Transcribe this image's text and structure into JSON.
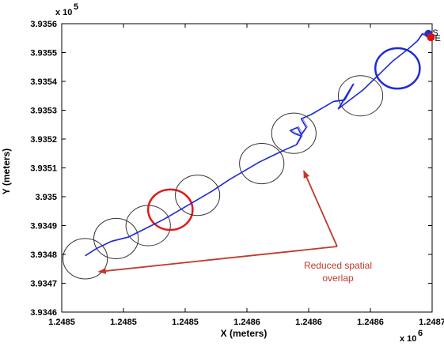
{
  "chart_data": {
    "type": "line",
    "xlabel": "X (meters)",
    "ylabel": "Y (meters)",
    "x_exponent_label": "x 10",
    "x_exponent_power": "6",
    "y_exponent_label": "x 10",
    "y_exponent_power": "5",
    "x_tick_labels": [
      "1.2485",
      "1.2485",
      "1.2485",
      "1.2486",
      "1.2486",
      "1.2486",
      "1.2487"
    ],
    "x_tick_values": [
      1248500,
      1248525,
      1248550,
      1248575,
      1248600,
      1248625,
      1248650
    ],
    "y_tick_labels": [
      "3.9356",
      "3.9355",
      "3.9354",
      "3.9353",
      "3.9352",
      "3.9351",
      "3.935",
      "3.9349",
      "3.9348",
      "3.9347",
      "3.9346"
    ],
    "y_tick_values": [
      393560,
      393550,
      393540,
      393530,
      393520,
      393510,
      393500,
      393490,
      393480,
      393470,
      393460
    ],
    "xlim": [
      1248500,
      1248650
    ],
    "ylim": [
      393460,
      393560
    ],
    "grid": false,
    "legend": "none",
    "trajectory_color": "#1f2bd6",
    "series": [
      {
        "values": [
          [
            1248509.5,
            393479.5
          ],
          [
            1248514,
            393482
          ],
          [
            1248520,
            393484.5
          ],
          [
            1248527,
            393486
          ],
          [
            1248534,
            393489
          ],
          [
            1248541,
            393492
          ],
          [
            1248548,
            393495.5
          ],
          [
            1248555,
            393499
          ],
          [
            1248561,
            393502
          ],
          [
            1248568,
            393506
          ],
          [
            1248574,
            393509
          ],
          [
            1248580,
            393512
          ],
          [
            1248586,
            393514.5
          ],
          [
            1248591,
            393516.5
          ],
          [
            1248595,
            393518
          ],
          [
            1248597,
            393521
          ],
          [
            1248594,
            393522
          ],
          [
            1248592.5,
            393523
          ],
          [
            1248595.5,
            393524
          ],
          [
            1248597,
            393521.5
          ],
          [
            1248599,
            393524
          ],
          [
            1248597,
            393527
          ],
          [
            1248601,
            393528.5
          ],
          [
            1248606,
            393531
          ],
          [
            1248610,
            393533
          ],
          [
            1248614.5,
            393533.5
          ],
          [
            1248618,
            393539
          ],
          [
            1248612,
            393530.5
          ],
          [
            1248622,
            393537
          ],
          [
            1248628,
            393542
          ],
          [
            1248634,
            393547
          ],
          [
            1248640,
            393551
          ],
          [
            1248644,
            393554
          ],
          [
            1248646,
            393556.5
          ],
          [
            1248649.5,
            393555
          ]
        ]
      }
    ],
    "markers": [
      {
        "label": "S",
        "x": 1248648.5,
        "y": 393556.5,
        "color": "#2233cc"
      },
      {
        "label": "E",
        "x": 1248649.5,
        "y": 393555.3,
        "color": "#e01010"
      }
    ],
    "ellipses": [
      {
        "cx": 1248509.5,
        "cy": 393478.5,
        "rx": 9,
        "ry": 7,
        "color": "#333333",
        "width": 1
      },
      {
        "cx": 1248522,
        "cy": 393485.5,
        "rx": 9,
        "ry": 7,
        "color": "#333333",
        "width": 1
      },
      {
        "cx": 1248535,
        "cy": 393490,
        "rx": 9,
        "ry": 7,
        "color": "#333333",
        "width": 1
      },
      {
        "cx": 1248544,
        "cy": 393495.5,
        "rx": 9,
        "ry": 7,
        "color": "#e01a1a",
        "width": 2.5
      },
      {
        "cx": 1248555,
        "cy": 393500.5,
        "rx": 9,
        "ry": 7,
        "color": "#333333",
        "width": 1
      },
      {
        "cx": 1248581,
        "cy": 393511.5,
        "rx": 9,
        "ry": 7,
        "color": "#333333",
        "width": 1
      },
      {
        "cx": 1248594,
        "cy": 393522,
        "rx": 9,
        "ry": 7,
        "color": "#333333",
        "width": 1
      },
      {
        "cx": 1248621,
        "cy": 393535,
        "rx": 9,
        "ry": 7,
        "color": "#333333",
        "width": 1
      },
      {
        "cx": 1248636,
        "cy": 393544.5,
        "rx": 9,
        "ry": 7,
        "color": "#1f2bd6",
        "width": 2.5
      }
    ],
    "annotation": {
      "lines": [
        "Reduced spatial",
        "overlap"
      ],
      "color": "#c0392b",
      "arrow_targets": [
        {
          "x": 1248515,
          "y": 393474
        },
        {
          "x": 1248598,
          "y": 393509
        }
      ]
    }
  }
}
